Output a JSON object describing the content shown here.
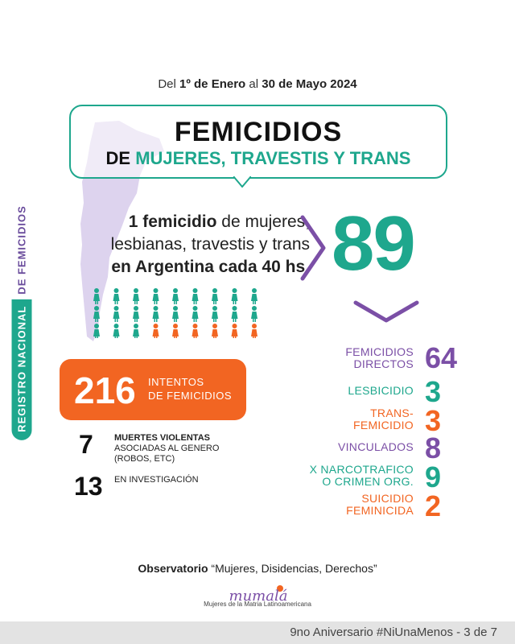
{
  "side_label": {
    "part1": "REGISTRO NACIONAL",
    "part2": "DE FEMICIDIOS"
  },
  "period": {
    "prefix": "Del",
    "start": "1º de Enero",
    "mid": "al",
    "end": "30 de Mayo 2024"
  },
  "title": {
    "line1": "FEMICIDIOS",
    "de": "DE",
    "line2": "MUJERES, TRAVESTIS Y TRANS"
  },
  "rate": {
    "bold1": "1 femicidio",
    "text1": " de mujeres,",
    "text2": "lesbianas, travestis y trans",
    "bold3": "en Argentina cada 40 hs."
  },
  "total": "89",
  "intentos": {
    "value": "216",
    "line1": "INTENTOS",
    "line2": "DE FEMICIDIOS"
  },
  "extras": [
    {
      "value": "7",
      "line1": "MUERTES VIOLENTAS",
      "line2": "ASOCIADAS AL GENERO",
      "line3": "(ROBOS, ETC)"
    },
    {
      "value": "13",
      "line1": "EN INVESTIGACIÓN"
    }
  ],
  "categories": [
    {
      "line1": "FEMICIDIOS",
      "line2": "DIRECTOS",
      "value": "64",
      "color": "#7b4fa6"
    },
    {
      "line1": "LESBICIDIO",
      "line2": "",
      "value": "3",
      "color": "#1ea78d"
    },
    {
      "line1": "TRANS-",
      "line2": "FEMICIDIO",
      "value": "3",
      "color": "#f26522"
    },
    {
      "line1": "VINCULADOS",
      "line2": "",
      "value": "8",
      "color": "#7b4fa6"
    },
    {
      "line1": "X NARCOTRAFICO",
      "line2": "O CRIMEN ORG.",
      "value": "9",
      "color": "#1ea78d"
    },
    {
      "line1": "SUICIDIO",
      "line2": "FEMINICIDA",
      "value": "2",
      "color": "#f26522"
    }
  ],
  "observatorio": {
    "bold": "Observatorio",
    "text": "“Mujeres, Disidencias, Derechos”"
  },
  "logo": {
    "name": "mumalá",
    "subtitle": "Mujeres de la Matria Latinoamericana"
  },
  "footer": "9no Aniversario #NiUnaMenos - 3 de 7",
  "colors": {
    "teal": "#1ea78d",
    "purple": "#7b4fa6",
    "orange": "#f26522",
    "lavender": "#ddd3ee"
  },
  "people_icons": {
    "rows": 3,
    "cols": 9,
    "teal_count": 21,
    "orange_count": 6
  }
}
